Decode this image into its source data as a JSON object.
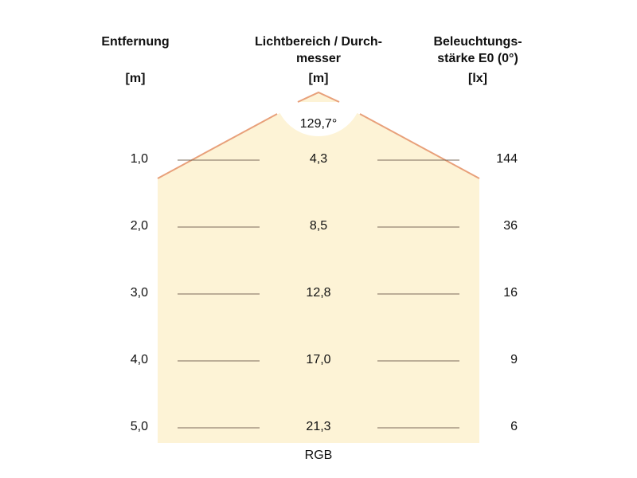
{
  "headers": {
    "distance": {
      "title": "Entfernung",
      "unit": "[m]"
    },
    "diameter": {
      "title_line1": "Lichtbereich / Durch-",
      "title_line2": "messer",
      "unit": "[m]"
    },
    "illuminance": {
      "title_line1": "Beleuchtungs-",
      "title_line2": "stärke E0 (0°)",
      "unit": "[lx]"
    }
  },
  "beam_angle": "129,7°",
  "footer_label": "RGB",
  "rows": [
    {
      "distance": "1,0",
      "diameter": "4,3",
      "illuminance": "144"
    },
    {
      "distance": "2,0",
      "diameter": "8,5",
      "illuminance": "36"
    },
    {
      "distance": "3,0",
      "diameter": "12,8",
      "illuminance": "16"
    },
    {
      "distance": "4,0",
      "diameter": "17,0",
      "illuminance": "9"
    },
    {
      "distance": "5,0",
      "diameter": "21,3",
      "illuminance": "6"
    }
  ],
  "colors": {
    "light_fill": "#fdf3d6",
    "beam_edge": "#e8a07a",
    "row_line": "#7a6a5a"
  }
}
